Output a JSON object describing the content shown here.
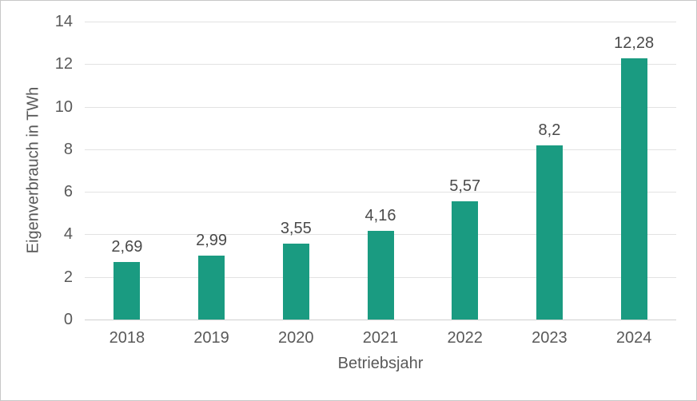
{
  "chart_data": {
    "type": "bar",
    "categories": [
      "2018",
      "2019",
      "2020",
      "2021",
      "2022",
      "2023",
      "2024"
    ],
    "values": [
      2.69,
      2.99,
      3.55,
      4.16,
      5.57,
      8.2,
      12.28
    ],
    "value_labels": [
      "2,69",
      "2,99",
      "3,55",
      "4,16",
      "5,57",
      "8,2",
      "12,28"
    ],
    "title": "",
    "xlabel": "Betriebsjahr",
    "ylabel": "Eigenverbrauch in TWh",
    "ylim": [
      0,
      14
    ],
    "ytick_step": 2,
    "ytick_labels": [
      "0",
      "2",
      "4",
      "6",
      "8",
      "10",
      "12",
      "14"
    ],
    "grid": true,
    "legend": "none",
    "colors": {
      "bar": "#1a9b81",
      "data_label": "#4a4a4a",
      "axis_text": "#595959",
      "gridline": "#e2e2e2",
      "baseline": "#d0d0d0",
      "border": "#c8c8c8",
      "background": "#ffffff"
    }
  }
}
